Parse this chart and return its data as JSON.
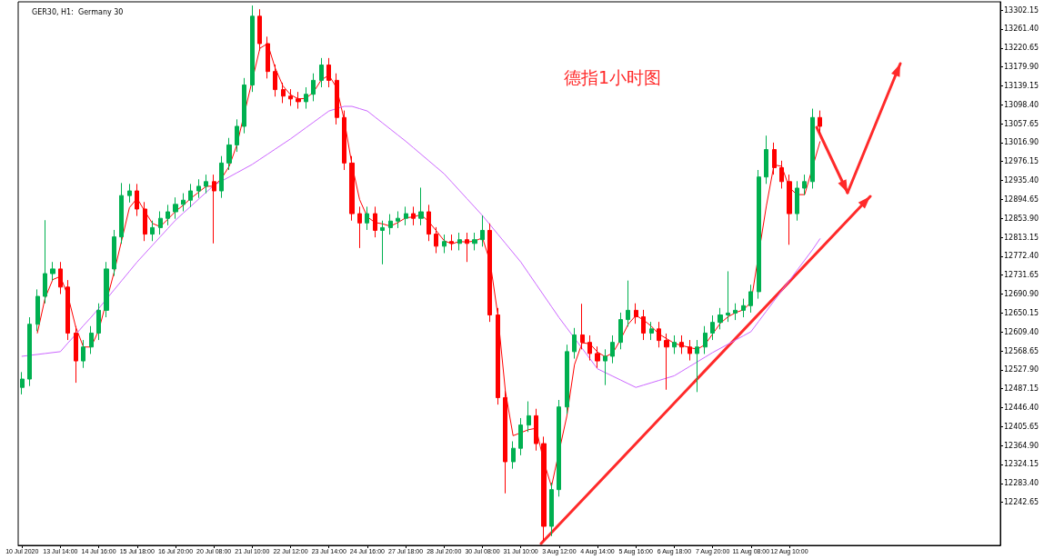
{
  "chart_data": {
    "type": "candlestick",
    "title": "德指1小时图",
    "subtitle": "GER30, H1:  Germany 30",
    "categories": [
      "10 Jul 2020",
      null,
      null,
      null,
      null,
      "13 Jul 14:00",
      null,
      null,
      null,
      null,
      "14 Jul 16:00",
      null,
      null,
      null,
      null,
      "15 Jul 18:00",
      null,
      null,
      null,
      null,
      "16 Jul 20:00",
      null,
      null,
      null,
      null,
      "20 Jul 08:00",
      null,
      null,
      null,
      null,
      "21 Jul 10:00",
      null,
      null,
      null,
      null,
      "22 Jul 12:00",
      null,
      null,
      null,
      null,
      "23 Jul 14:00",
      null,
      null,
      null,
      null,
      "24 Jul 16:00",
      null,
      null,
      null,
      null,
      "27 Jul 18:00",
      null,
      null,
      null,
      null,
      "28 Jul 20:00",
      null,
      null,
      null,
      null,
      "30 Jul 08:00",
      null,
      null,
      null,
      null,
      "31 Jul 10:00",
      null,
      null,
      null,
      null,
      "3 Aug 12:00",
      null,
      null,
      null,
      null,
      "4 Aug 14:00",
      null,
      null,
      null,
      null,
      "5 Aug 16:00",
      null,
      null,
      null,
      null,
      "6 Aug 18:00",
      null,
      null,
      null,
      null,
      "7 Aug 20:00",
      null,
      null,
      null,
      null,
      "11 Aug 08:00",
      null,
      null,
      null,
      null,
      "12 Aug 10:00",
      null,
      null,
      null,
      null,
      null,
      null,
      null,
      null,
      null,
      null,
      null,
      null,
      null,
      null,
      null,
      null,
      null,
      null,
      null,
      null,
      null,
      null,
      null,
      null,
      null,
      null,
      null
    ],
    "ohlc": [
      [
        12490,
        12523,
        12475,
        12508
      ],
      [
        12508,
        12641,
        12493,
        12626
      ],
      [
        12626,
        12701,
        12611,
        12686
      ],
      [
        12686,
        12850,
        12671,
        12735
      ],
      [
        12735,
        12760,
        12720,
        12745
      ],
      [
        12745,
        12760,
        12691,
        12706
      ],
      [
        12706,
        12721,
        12592,
        12607
      ],
      [
        12607,
        12622,
        12500,
        12547
      ],
      [
        12547,
        12592,
        12532,
        12577
      ],
      [
        12577,
        12622,
        12562,
        12607
      ],
      [
        12607,
        12671,
        12592,
        12656
      ],
      [
        12656,
        12760,
        12641,
        12745
      ],
      [
        12745,
        12829,
        12730,
        12814
      ],
      [
        12814,
        12930,
        12799,
        12903
      ],
      [
        12903,
        12928,
        12888,
        12913
      ],
      [
        12913,
        12928,
        12859,
        12874
      ],
      [
        12874,
        12889,
        12805,
        12820
      ],
      [
        12820,
        12849,
        12805,
        12834
      ],
      [
        12834,
        12869,
        12819,
        12854
      ],
      [
        12854,
        12883,
        12839,
        12868
      ],
      [
        12868,
        12899,
        12853,
        12884
      ],
      [
        12884,
        12908,
        12869,
        12893
      ],
      [
        12893,
        12928,
        12878,
        12913
      ],
      [
        12913,
        12938,
        12898,
        12923
      ],
      [
        12923,
        12948,
        12908,
        12933
      ],
      [
        12933,
        12948,
        12800,
        12913
      ],
      [
        12913,
        12988,
        12898,
        12973
      ],
      [
        12973,
        13027,
        12958,
        13012
      ],
      [
        13012,
        13067,
        12997,
        13052
      ],
      [
        13052,
        13156,
        13037,
        13141
      ],
      [
        13141,
        13312,
        13126,
        13289
      ],
      [
        13289,
        13304,
        13215,
        13230
      ],
      [
        13230,
        13245,
        13155,
        13170
      ],
      [
        13170,
        13185,
        13116,
        13131
      ],
      [
        13131,
        13146,
        13102,
        13117
      ],
      [
        13117,
        13132,
        13096,
        13111
      ],
      [
        13111,
        13126,
        13090,
        13105
      ],
      [
        13105,
        13136,
        13090,
        13121
      ],
      [
        13121,
        13166,
        13106,
        13151
      ],
      [
        13151,
        13199,
        13136,
        13184
      ],
      [
        13184,
        13199,
        13136,
        13151
      ],
      [
        13151,
        13166,
        13056,
        13071
      ],
      [
        13071,
        13086,
        12958,
        12973
      ],
      [
        12973,
        12988,
        12849,
        12864
      ],
      [
        12864,
        12879,
        12790,
        12844
      ],
      [
        12844,
        12879,
        12829,
        12864
      ],
      [
        12864,
        12879,
        12813,
        12828
      ],
      [
        12828,
        12849,
        12755,
        12834
      ],
      [
        12834,
        12863,
        12819,
        12848
      ],
      [
        12848,
        12869,
        12833,
        12854
      ],
      [
        12854,
        12879,
        12839,
        12864
      ],
      [
        12864,
        12879,
        12839,
        12854
      ],
      [
        12854,
        12920,
        12839,
        12868
      ],
      [
        12868,
        12883,
        12805,
        12820
      ],
      [
        12820,
        12835,
        12779,
        12794
      ],
      [
        12794,
        12819,
        12779,
        12804
      ],
      [
        12804,
        12819,
        12785,
        12800
      ],
      [
        12800,
        12823,
        12785,
        12808
      ],
      [
        12808,
        12823,
        12760,
        12800
      ],
      [
        12800,
        12823,
        12785,
        12808
      ],
      [
        12808,
        12860,
        12793,
        12828
      ],
      [
        12828,
        12843,
        12631,
        12646
      ],
      [
        12646,
        12661,
        12453,
        12468
      ],
      [
        12468,
        12483,
        12262,
        12330
      ],
      [
        12330,
        12374,
        12315,
        12359
      ],
      [
        12359,
        12424,
        12344,
        12409
      ],
      [
        12409,
        12460,
        12394,
        12429
      ],
      [
        12429,
        12444,
        12354,
        12369
      ],
      [
        12369,
        12384,
        12160,
        12191
      ],
      [
        12191,
        12285,
        12170,
        12270
      ],
      [
        12270,
        12463,
        12255,
        12448
      ],
      [
        12448,
        12582,
        12433,
        12567
      ],
      [
        12567,
        12618,
        12552,
        12603
      ],
      [
        12603,
        12670,
        12572,
        12587
      ],
      [
        12587,
        12602,
        12548,
        12563
      ],
      [
        12563,
        12578,
        12532,
        12547
      ],
      [
        12547,
        12572,
        12495,
        12557
      ],
      [
        12557,
        12602,
        12542,
        12587
      ],
      [
        12587,
        12651,
        12572,
        12636
      ],
      [
        12636,
        12720,
        12621,
        12656
      ],
      [
        12656,
        12671,
        12627,
        12642
      ],
      [
        12642,
        12657,
        12592,
        12607
      ],
      [
        12607,
        12631,
        12592,
        12616
      ],
      [
        12616,
        12631,
        12576,
        12591
      ],
      [
        12591,
        12606,
        12485,
        12577
      ],
      [
        12577,
        12602,
        12562,
        12587
      ],
      [
        12587,
        12602,
        12562,
        12577
      ],
      [
        12577,
        12592,
        12548,
        12563
      ],
      [
        12563,
        12592,
        12480,
        12577
      ],
      [
        12577,
        12622,
        12562,
        12607
      ],
      [
        12607,
        12645,
        12592,
        12630
      ],
      [
        12630,
        12661,
        12615,
        12646
      ],
      [
        12646,
        12740,
        12631,
        12650
      ],
      [
        12650,
        12671,
        12635,
        12656
      ],
      [
        12656,
        12681,
        12641,
        12666
      ],
      [
        12666,
        12711,
        12651,
        12696
      ],
      [
        12696,
        12958,
        12681,
        12943
      ],
      [
        12943,
        13032,
        12928,
        13002
      ],
      [
        13002,
        13017,
        12948,
        12963
      ],
      [
        12963,
        12978,
        12918,
        12933
      ],
      [
        12933,
        12948,
        12797,
        12864
      ],
      [
        12864,
        12934,
        12849,
        12919
      ],
      [
        12919,
        12948,
        12904,
        12933
      ],
      [
        12933,
        13090,
        12918,
        13071
      ],
      [
        13071,
        13086,
        13037,
        13052
      ],
      null,
      null,
      null,
      null,
      null,
      null,
      null,
      null,
      null,
      null,
      null,
      null,
      null,
      null,
      null,
      null,
      null,
      null,
      null,
      null,
      null,
      null,
      null
    ],
    "colors": [
      "#00b050",
      "#00b050",
      "#00b050",
      "#00b050",
      "#00b050",
      "#ff0000",
      "#ff0000",
      "#ff0000",
      "#00b050",
      "#00b050",
      "#00b050",
      "#00b050",
      "#00b050",
      "#00b050",
      "#00b050",
      "#ff0000",
      "#ff0000",
      "#00b050",
      "#00b050",
      "#00b050",
      "#00b050",
      "#00b050",
      "#00b050",
      "#00b050",
      "#00b050",
      "#ff0000",
      "#00b050",
      "#00b050",
      "#00b050",
      "#00b050",
      "#00b050",
      "#ff0000",
      "#ff0000",
      "#ff0000",
      "#ff0000",
      "#ff0000",
      "#ff0000",
      "#00b050",
      "#00b050",
      "#00b050",
      "#ff0000",
      "#ff0000",
      "#ff0000",
      "#ff0000",
      "#ff0000",
      "#00b050",
      "#ff0000",
      "#00b050",
      "#00b050",
      "#00b050",
      "#00b050",
      "#ff0000",
      "#00b050",
      "#ff0000",
      "#ff0000",
      "#00b050",
      "#ff0000",
      "#00b050",
      "#ff0000",
      "#00b050",
      "#00b050",
      "#ff0000",
      "#ff0000",
      "#ff0000",
      "#00b050",
      "#00b050",
      "#00b050",
      "#ff0000",
      "#ff0000",
      "#00b050",
      "#00b050",
      "#00b050",
      "#00b050",
      "#ff0000",
      "#ff0000",
      "#ff0000",
      "#00b050",
      "#00b050",
      "#00b050",
      "#00b050",
      "#ff0000",
      "#ff0000",
      "#00b050",
      "#ff0000",
      "#ff0000",
      "#00b050",
      "#ff0000",
      "#ff0000",
      "#00b050",
      "#00b050",
      "#00b050",
      "#00b050",
      "#00b050",
      "#00b050",
      "#00b050",
      "#00b050",
      "#00b050",
      "#00b050",
      "#ff0000",
      "#ff0000",
      "#ff0000",
      "#00b050",
      "#00b050",
      "#00b050",
      "#ff0000",
      null,
      null,
      null,
      null,
      null,
      null,
      null,
      null,
      null,
      null,
      null,
      null,
      null,
      null,
      null,
      null,
      null,
      null,
      null,
      null,
      null,
      null,
      null
    ],
    "series": [
      {
        "type": "line",
        "color": "#ff0000",
        "values": [
          null,
          null,
          12607,
          12682,
          12722,
          12729,
          12686,
          12620,
          12577,
          12577,
          12613,
          null,
          12738,
          null,
          12877,
          12897,
          12869,
          12843,
          12836,
          12852,
          12869,
          12882,
          12897,
          12910,
          12923,
          12923,
          12940,
          12966,
          13012,
          null,
          null,
          13220,
          13230,
          13177,
          13139,
          13120,
          13111,
          13112,
          13126,
          13152,
          13162,
          13135,
          13065,
          12969,
          12894,
          12857,
          12845,
          12842,
          12837,
          12845,
          12855,
          12857,
          12862,
          12847,
          12827,
          12806,
          12799,
          12804,
          12803,
          12805,
          12812,
          12761,
          12647,
          12481,
          12386,
          null,
          12399,
          12402,
          12330,
          12277,
          null,
          12428,
          12539,
          12586,
          12584,
          12566,
          12556,
          12564,
          12593,
          12626,
          12645,
          12635,
          12622,
          12605,
          12595,
          12585,
          12580,
          12576,
          12572,
          12582,
          12605,
          12628,
          12642,
          12651,
          12657,
          12673,
          null,
          12880,
          12969,
          12966,
          12920,
          12905,
          12905,
          null,
          13019,
          null,
          null,
          null,
          null,
          null,
          null,
          null,
          null,
          null,
          null,
          null,
          null,
          null,
          null,
          null,
          null,
          null,
          null,
          null,
          null,
          null,
          null,
          null
        ]
      },
      {
        "type": "line",
        "color": "#cc66ff",
        "values": [
          12557,
          12559,
          12561,
          12563,
          12565,
          12567,
          12586,
          12604,
          12623,
          12641,
          12660,
          12680,
          12700,
          12720,
          12740,
          12760,
          12778,
          12796,
          12814,
          12832,
          12850,
          12865,
          12880,
          12895,
          12910,
          12925,
          12934,
          12943,
          12952,
          12961,
          12970,
          12981,
          12992,
          13003,
          13014,
          13025,
          13037,
          13049,
          13061,
          13073,
          13085,
          13090,
          13095,
          13095,
          13090,
          13085,
          13072,
          13059,
          13046,
          13033,
          13020,
          13006,
          12992,
          12978,
          12964,
          12950,
          12932,
          12914,
          12896,
          12878,
          12860,
          12840,
          12820,
          12800,
          12780,
          12760,
          12736,
          12712,
          12688,
          12664,
          12640,
          12618,
          12596,
          12574,
          12552,
          12530,
          12522,
          12514,
          12506,
          12498,
          12490,
          12495,
          12500,
          12505,
          12510,
          12515,
          12525,
          12535,
          12545,
          12555,
          12565,
          12574,
          12583,
          12592,
          12601,
          12610,
          12632,
          12654,
          12676,
          12698,
          12720,
          12742,
          12764,
          12786,
          12810,
          null,
          null,
          null,
          null,
          null,
          null,
          null,
          null,
          null,
          null,
          null,
          null,
          null,
          null,
          null,
          null,
          null,
          null,
          null,
          null,
          null,
          null,
          null
        ]
      }
    ],
    "ylim": [
      12150,
      13320
    ],
    "yticks": [
      {
        "value": 12242.65,
        "label": "12242.65"
      },
      {
        "value": 12283.4,
        "label": "12283.40"
      },
      {
        "value": 12324.15,
        "label": "12324.15"
      },
      {
        "value": 12364.9,
        "label": "12364.90"
      },
      {
        "value": 12405.65,
        "label": "12405.65"
      },
      {
        "value": 12446.4,
        "label": "12446.40"
      },
      {
        "value": 12487.15,
        "label": "12487.15"
      },
      {
        "value": 12527.9,
        "label": "12527.90"
      },
      {
        "value": 12568.65,
        "label": "12568.65"
      },
      {
        "value": 12609.4,
        "label": "12609.40"
      },
      {
        "value": 12650.15,
        "label": "12650.15"
      },
      {
        "value": 12690.9,
        "label": "12690.90"
      },
      {
        "value": 12731.65,
        "label": "12731.65"
      },
      {
        "value": 12772.4,
        "label": "12772.40"
      },
      {
        "value": 12813.15,
        "label": "12813.15"
      },
      {
        "value": 12853.9,
        "label": "12853.90"
      },
      {
        "value": 12894.65,
        "label": "12894.65"
      },
      {
        "value": 12935.4,
        "label": "12935.40"
      },
      {
        "value": 12976.15,
        "label": "12976.15"
      },
      {
        "value": 13016.9,
        "label": "13016.90"
      },
      {
        "value": 13057.65,
        "label": "13057.65"
      },
      {
        "value": 13098.4,
        "label": "13098.40"
      },
      {
        "value": 13139.15,
        "label": "13139.15"
      },
      {
        "value": 13179.9,
        "label": "13179.90"
      },
      {
        "value": 13220.65,
        "label": "13220.65"
      },
      {
        "value": 13261.4,
        "label": "13261.40"
      },
      {
        "value": 13302.15,
        "label": "13302.15"
      }
    ],
    "grid": false
  }
}
